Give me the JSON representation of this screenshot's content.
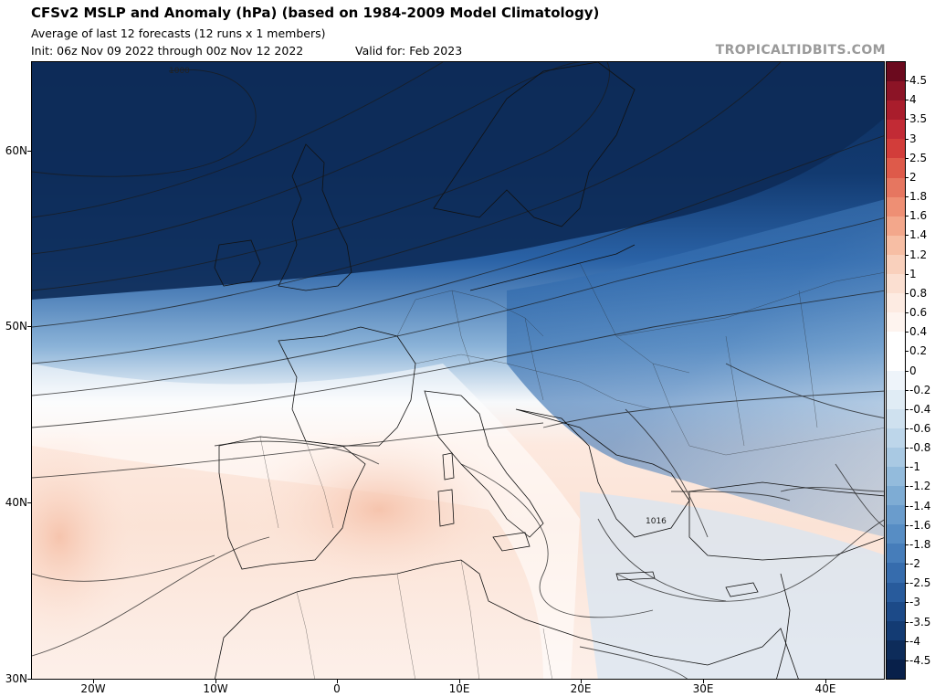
{
  "header": {
    "title": "CFSv2 MSLP and Anomaly (hPa) (based on 1984-2009 Model Climatology)",
    "subtitle": "Average of last 12 forecasts (12 runs x 1 members)",
    "init": "Init: 06z Nov 09 2022 through 00z Nov 12 2022",
    "valid": "Valid for: Feb 2023",
    "brand": "TROPICALTIDBITS.COM"
  },
  "map": {
    "lat_labels": [
      "60N",
      "50N",
      "40N",
      "30N"
    ],
    "lon_labels": [
      "20W",
      "10W",
      "0",
      "10E",
      "20E",
      "30E",
      "40E"
    ],
    "contour_labels": [
      "1000",
      "1016"
    ]
  },
  "colorbar": {
    "labels": [
      "4.5",
      "4",
      "3.5",
      "3",
      "2.5",
      "2",
      "1.8",
      "1.6",
      "1.4",
      "1.2",
      "1",
      "0.8",
      "0.6",
      "0.4",
      "0.2",
      "0",
      "-0.2",
      "-0.4",
      "-0.6",
      "-0.8",
      "-1",
      "-1.2",
      "-1.4",
      "-1.6",
      "-1.8",
      "-2",
      "-2.5",
      "-3",
      "-3.5",
      "-4",
      "-4.5"
    ],
    "colors": [
      "#6b0a1e",
      "#8c1426",
      "#a91d2c",
      "#c22b35",
      "#d23d3a",
      "#de5a4a",
      "#e67660",
      "#ee8f74",
      "#f3a78b",
      "#f7bea4",
      "#f9d0bc",
      "#fbdfd1",
      "#fdebe2",
      "#fef4ef",
      "#ffffff",
      "#ffffff",
      "#eef4fa",
      "#e0ecf5",
      "#cfe1ef",
      "#bdd6ea",
      "#a9c9e3",
      "#93bbdc",
      "#7eacd4",
      "#6a9ccc",
      "#578dc4",
      "#467dba",
      "#366cad",
      "#285b9c",
      "#1c4a88",
      "#133b73",
      "#0d2c5a",
      "#08204a"
    ]
  }
}
